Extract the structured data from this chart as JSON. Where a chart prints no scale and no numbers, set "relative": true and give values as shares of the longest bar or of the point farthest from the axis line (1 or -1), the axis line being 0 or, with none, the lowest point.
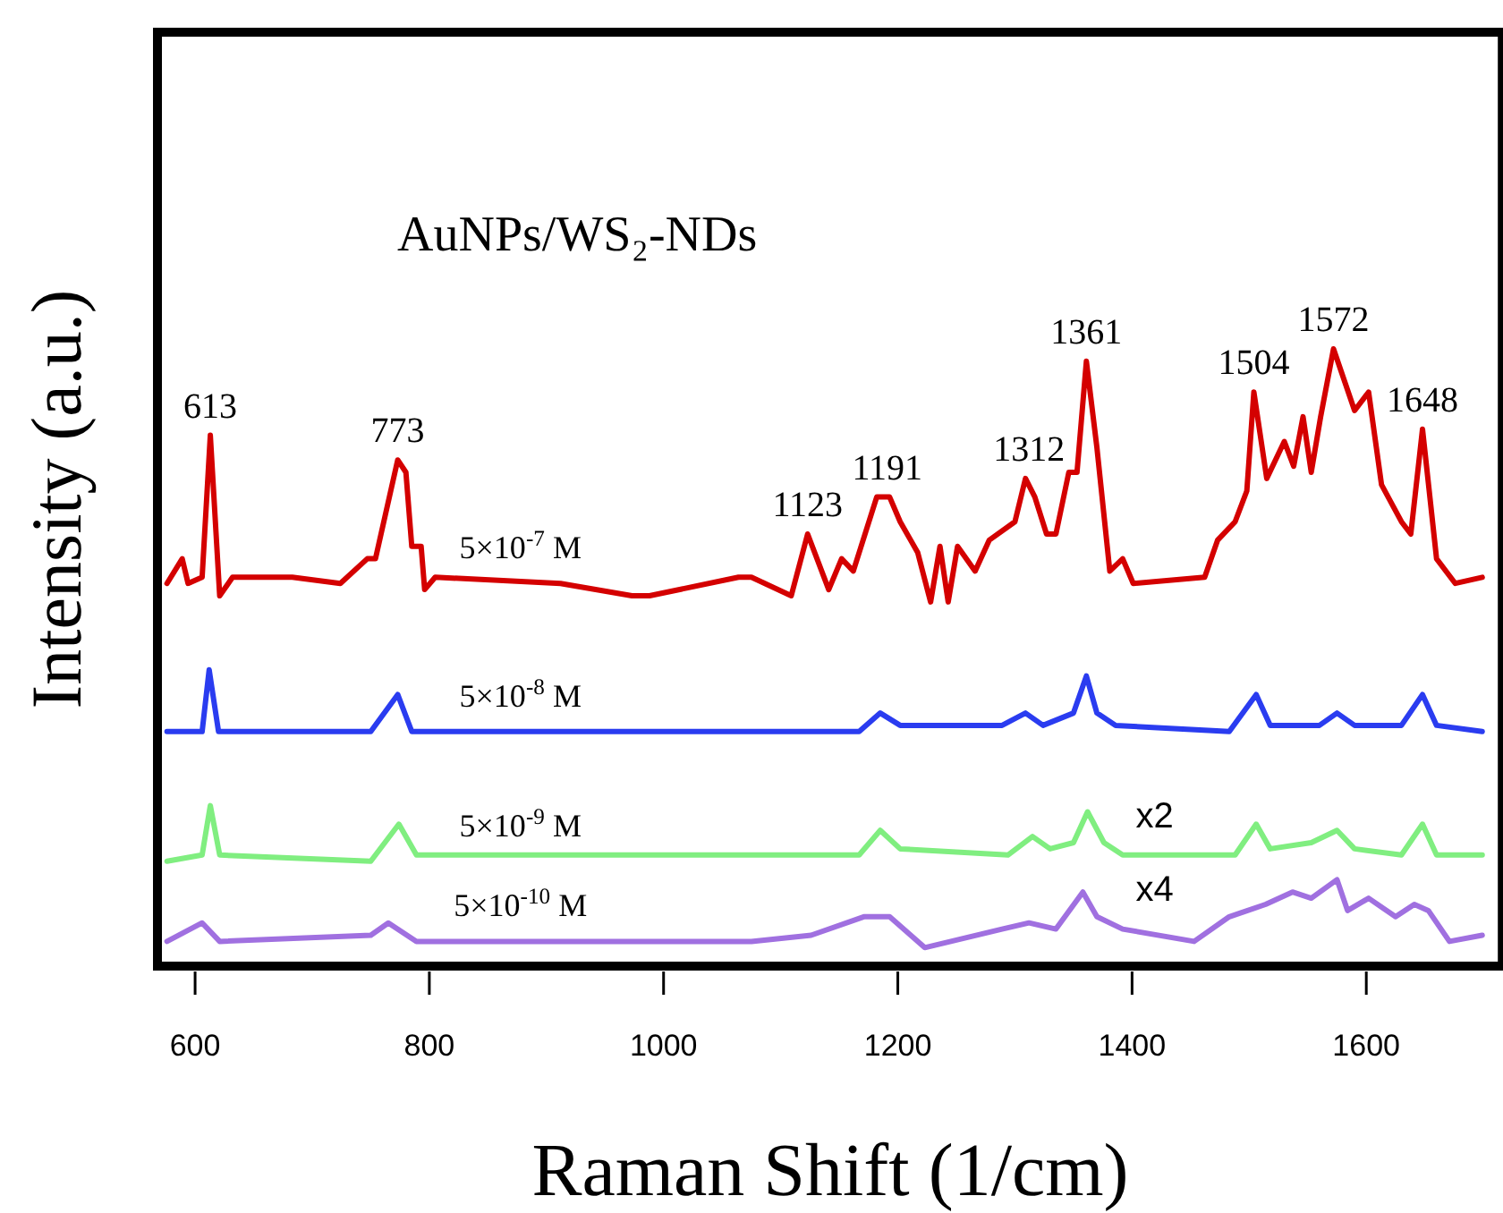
{
  "chart_data": {
    "type": "line",
    "title": "AuNPs/WS₂-NDs",
    "xlabel": "Raman Shift (1/cm)",
    "ylabel": "Intensity (a.u.)",
    "relative": true,
    "xlim": [
      570,
      1710
    ],
    "xticks": [
      600,
      800,
      1000,
      1200,
      1400,
      1600
    ],
    "grid": false,
    "marker": "none",
    "line_style": "solid",
    "series": [
      {
        "name": "5×10$^{-7}$ M",
        "color": "#d40000",
        "x": [
          576,
          589,
          594,
          606,
          613,
          621,
          632,
          683,
          724,
          747,
          754,
          773,
          780,
          785,
          793,
          796,
          805,
          912,
          973,
          988,
          1064,
          1075,
          1109,
          1123,
          1141,
          1152,
          1162,
          1182,
          1193,
          1202,
          1217,
          1228,
          1236,
          1243,
          1251,
          1266,
          1278,
          1300,
          1309,
          1317,
          1327,
          1335,
          1346,
          1353,
          1361,
          1370,
          1381,
          1392,
          1401,
          1462,
          1473,
          1488,
          1498,
          1504,
          1515,
          1530,
          1538,
          1546,
          1553,
          1561,
          1572,
          1590,
          1602,
          1613,
          1630,
          1638,
          1648,
          1660,
          1676,
          1699
        ],
        "values": [
          0.62,
          0.66,
          0.62,
          0.63,
          0.86,
          0.6,
          0.63,
          0.63,
          0.62,
          0.66,
          0.66,
          0.82,
          0.8,
          0.68,
          0.68,
          0.61,
          0.63,
          0.62,
          0.6,
          0.6,
          0.63,
          0.63,
          0.6,
          0.7,
          0.61,
          0.66,
          0.64,
          0.76,
          0.76,
          0.72,
          0.67,
          0.59,
          0.68,
          0.59,
          0.68,
          0.64,
          0.69,
          0.72,
          0.79,
          0.76,
          0.7,
          0.7,
          0.8,
          0.8,
          0.98,
          0.84,
          0.64,
          0.66,
          0.62,
          0.63,
          0.69,
          0.72,
          0.77,
          0.93,
          0.79,
          0.85,
          0.81,
          0.89,
          0.8,
          0.89,
          1,
          0.9,
          0.93,
          0.78,
          0.72,
          0.7,
          0.87,
          0.66,
          0.62,
          0.63
        ]
      },
      {
        "name": "5×10$^{-8}$ M",
        "color": "#2a3cf0",
        "x": [
          576,
          606,
          612,
          620,
          750,
          773,
          785,
          1075,
          1167,
          1185,
          1202,
          1289,
          1309,
          1324,
          1350,
          1361,
          1370,
          1386,
          1483,
          1506,
          1518,
          1560,
          1575,
          1590,
          1630,
          1648,
          1660,
          1699
        ],
        "values": [
          0.38,
          0.38,
          0.48,
          0.38,
          0.38,
          0.44,
          0.38,
          0.38,
          0.38,
          0.41,
          0.39,
          0.39,
          0.41,
          0.39,
          0.41,
          0.47,
          0.41,
          0.39,
          0.38,
          0.44,
          0.39,
          0.39,
          0.41,
          0.39,
          0.39,
          0.44,
          0.39,
          0.38
        ]
      },
      {
        "name": "5×10$^{-9}$ M",
        "color": "#80ee80",
        "x": [
          576,
          606,
          613,
          621,
          750,
          774,
          789,
          1075,
          1167,
          1185,
          1202,
          1294,
          1315,
          1330,
          1350,
          1362,
          1376,
          1392,
          1488,
          1506,
          1518,
          1553,
          1575,
          1590,
          1630,
          1648,
          1660,
          1699
        ],
        "values": [
          0.17,
          0.18,
          0.26,
          0.18,
          0.17,
          0.23,
          0.18,
          0.18,
          0.18,
          0.22,
          0.19,
          0.18,
          0.21,
          0.19,
          0.2,
          0.25,
          0.2,
          0.18,
          0.18,
          0.23,
          0.19,
          0.2,
          0.22,
          0.19,
          0.18,
          0.23,
          0.18,
          0.18
        ]
      },
      {
        "name": "5×10$^{-10}$ M",
        "color": "#a070e0",
        "x": [
          576,
          606,
          621,
          750,
          765,
          789,
          1075,
          1126,
          1171,
          1193,
          1223,
          1289,
          1312,
          1335,
          1358,
          1370,
          1392,
          1453,
          1483,
          1514,
          1537,
          1553,
          1575,
          1584,
          1602,
          1625,
          1641,
          1653,
          1671,
          1699
        ],
        "values": [
          0.04,
          0.07,
          0.04,
          0.05,
          0.07,
          0.04,
          0.04,
          0.05,
          0.08,
          0.08,
          0.03,
          0.06,
          0.07,
          0.06,
          0.12,
          0.08,
          0.06,
          0.04,
          0.08,
          0.1,
          0.12,
          0.11,
          0.14,
          0.09,
          0.11,
          0.08,
          0.1,
          0.09,
          0.04,
          0.05
        ]
      }
    ],
    "annotations": [
      {
        "text": "613",
        "x": 613,
        "y": 0.86
      },
      {
        "text": "773",
        "x": 773,
        "y": 0.82
      },
      {
        "text": "1123",
        "x": 1123,
        "y": 0.7
      },
      {
        "text": "1191",
        "x": 1191,
        "y": 0.76
      },
      {
        "text": "1312",
        "x": 1312,
        "y": 0.79
      },
      {
        "text": "1361",
        "x": 1361,
        "y": 0.98
      },
      {
        "text": "1504",
        "x": 1504,
        "y": 0.93
      },
      {
        "text": "1572",
        "x": 1572,
        "y": 1
      },
      {
        "text": "1648",
        "x": 1648,
        "y": 0.87
      },
      "x2",
      "x4"
    ]
  }
}
